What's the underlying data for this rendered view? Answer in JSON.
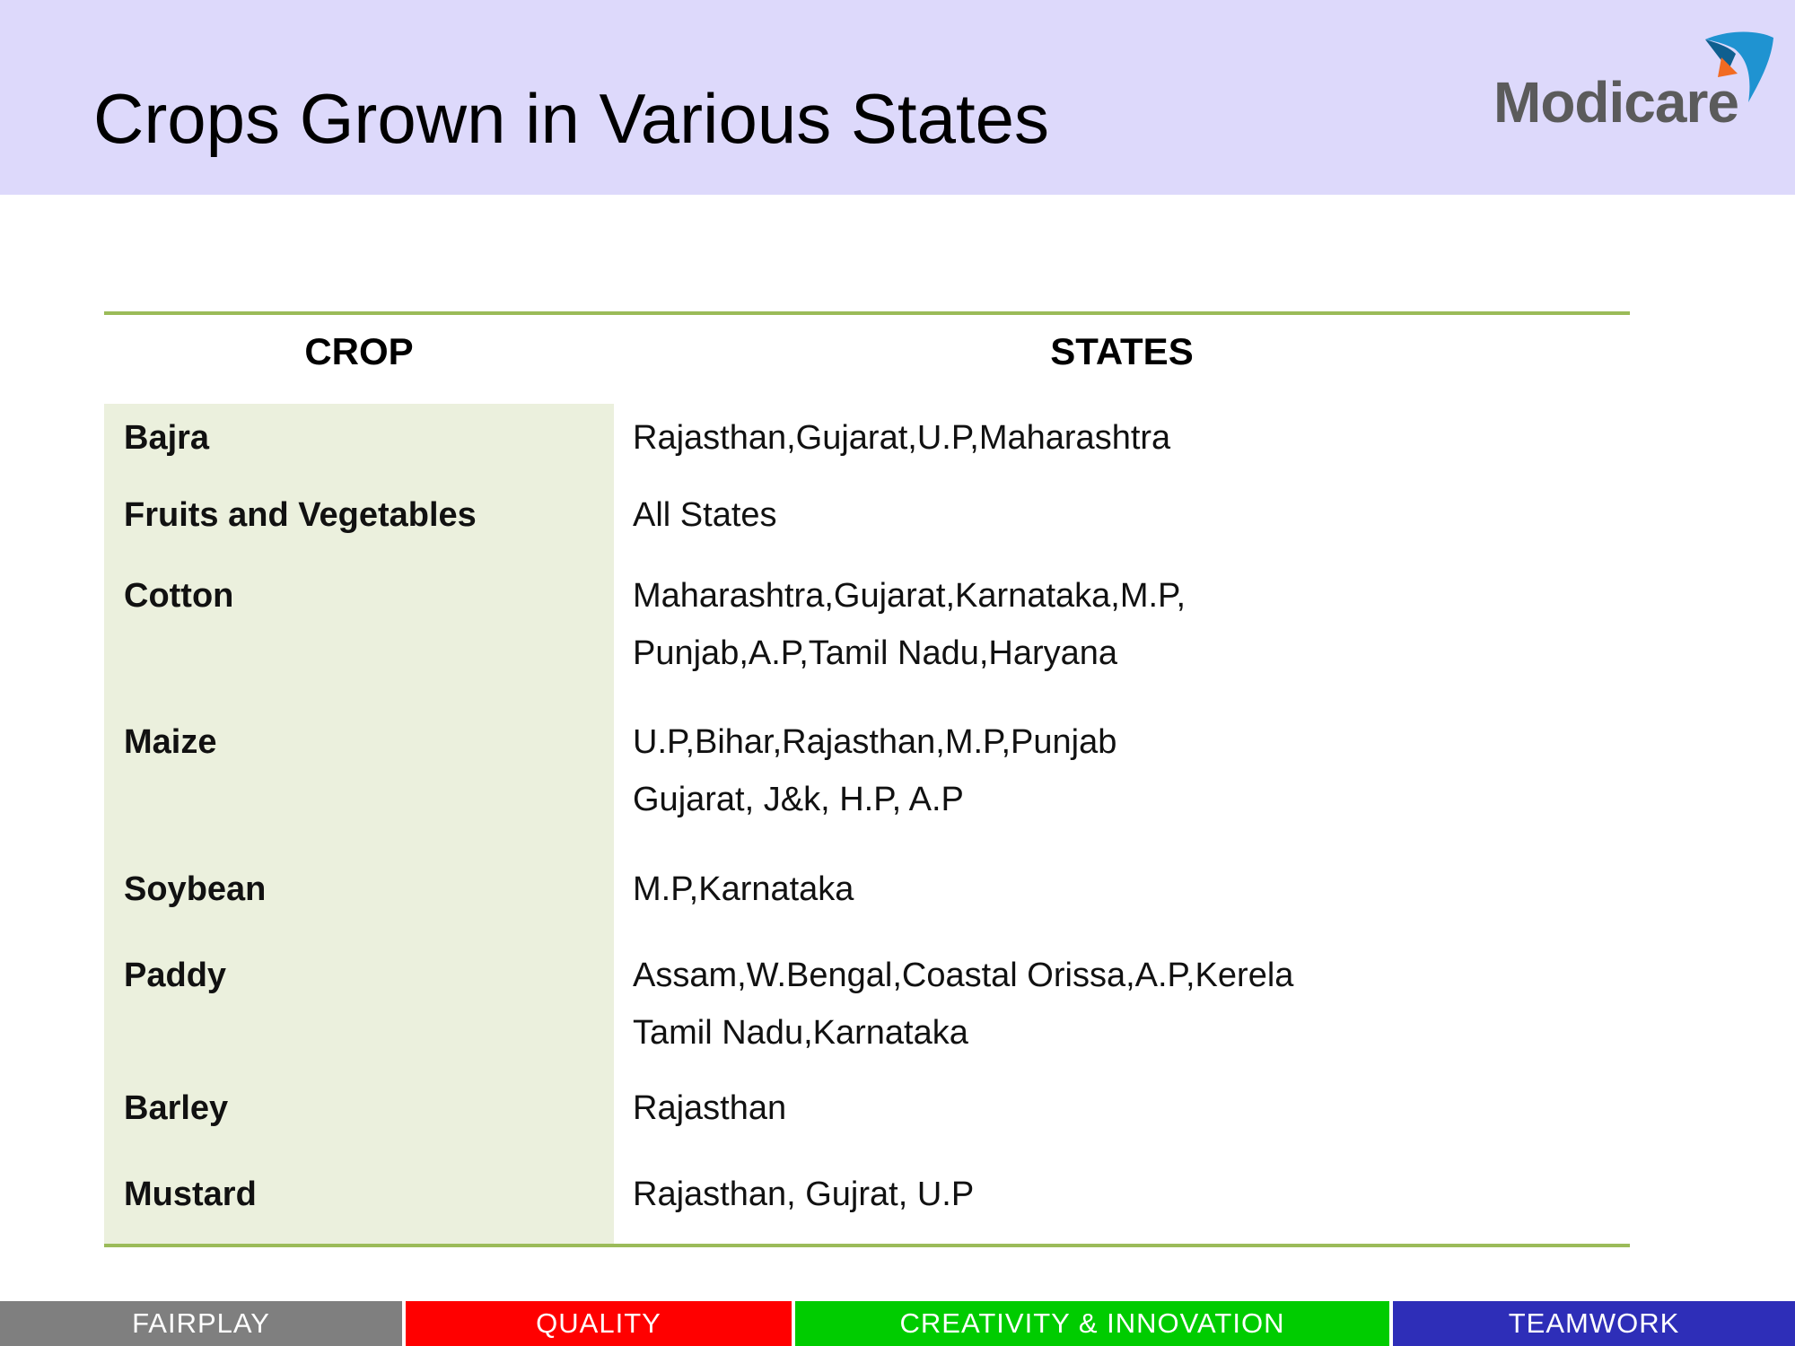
{
  "slide": {
    "title": "Crops Grown in Various States",
    "logo_text": "Modicare",
    "logo_icon": "modicare-swoosh-logo-icon"
  },
  "table": {
    "headers": {
      "crop": "CROP",
      "states": "STATES"
    },
    "rows": [
      {
        "crop": "Bajra",
        "states": [
          "Rajasthan,Gujarat,U.P,Maharashtra"
        ]
      },
      {
        "crop": "Fruits and Vegetables",
        "states": [
          "All States"
        ]
      },
      {
        "crop": "Cotton",
        "states": [
          "Maharashtra,Gujarat,Karnataka,M.P,",
          "Punjab,A.P,Tamil Nadu,Haryana"
        ]
      },
      {
        "crop": "Maize",
        "states": [
          "U.P,Bihar,Rajasthan,M.P,Punjab",
          "Gujarat, J&k, H.P, A.P"
        ]
      },
      {
        "crop": "Soybean",
        "states": [
          "M.P,Karnataka"
        ]
      },
      {
        "crop": "Paddy",
        "states": [
          "Assam,W.Bengal,Coastal Orissa,A.P,Kerela",
          "Tamil Nadu,Karnataka"
        ]
      },
      {
        "crop": "Barley",
        "states": [
          "Rajasthan"
        ]
      },
      {
        "crop": "Mustard",
        "states": [
          "Rajasthan, Gujrat, U.P"
        ]
      }
    ]
  },
  "footer": {
    "values": [
      "FAIRPLAY",
      "QUALITY",
      "CREATIVITY & INNOVATION",
      "TEAMWORK"
    ],
    "colors": [
      "#7f7f7f",
      "#ff0000",
      "#00cc00",
      "#2e2eb8"
    ]
  },
  "colors": {
    "header_bg": "#ddd9fb",
    "rule": "#9bbb59",
    "crop_column_bg": "#ebf0dd",
    "logo_text": "#5b5b5b",
    "logo_blue": "#1f93d1",
    "logo_orange": "#f26b22"
  }
}
